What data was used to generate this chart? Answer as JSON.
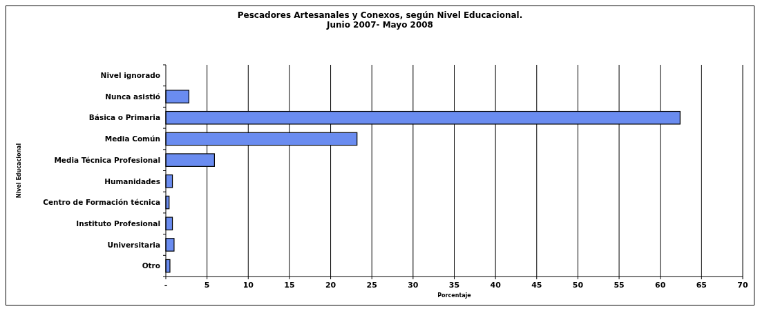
{
  "chart_data": {
    "type": "bar",
    "orientation": "horizontal",
    "title": "Pescadores Artesanales y Conexos, según Nivel Educacional.\nJunio 2007- Mayo 2008",
    "xlabel": "Porcentaje",
    "ylabel": "Nivel Educacional",
    "categories": [
      "Nivel ignorado",
      "Nunca asistió",
      "Básica o Primaria",
      "Media Común",
      "Media Técnica Profesional",
      "Humanidades",
      "Centro de Formación técnica",
      "Instituto Profesional",
      "Universitaria",
      "Otro"
    ],
    "values": [
      0,
      2.8,
      62.4,
      23.2,
      5.9,
      0.8,
      0.4,
      0.8,
      1.0,
      0.5
    ],
    "color": "#6a8cf0",
    "xlim": [
      0,
      70
    ],
    "xticks": [
      {
        "value": 0,
        "label": "-"
      },
      5,
      10,
      15,
      20,
      25,
      30,
      35,
      40,
      45,
      50,
      55,
      60,
      65,
      70
    ],
    "grid": "x"
  }
}
